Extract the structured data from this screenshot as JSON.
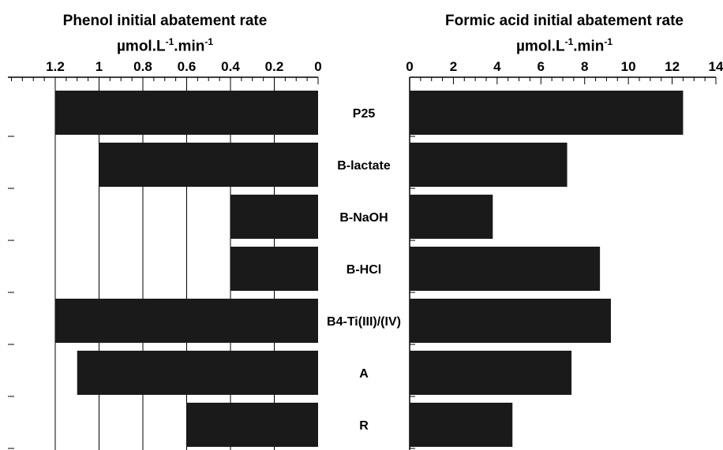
{
  "chart_data": [
    {
      "type": "bar",
      "orientation": "horizontal",
      "axis_direction": "reversed",
      "title": "Phenol initial abatement rate",
      "units": {
        "base": "µmol.L",
        "exp1": "-1",
        "mid": ".min",
        "exp2": "-1"
      },
      "categories": [
        "P25",
        "B-lactate",
        "B-NaOH",
        "B-HCl",
        "B4-Ti(III)/(IV)",
        "A",
        "R"
      ],
      "values": [
        1.2,
        1.0,
        0.4,
        0.4,
        1.2,
        1.1,
        0.6
      ],
      "xlim": [
        0,
        1.2
      ],
      "ticks": [
        1.2,
        1,
        0.8,
        0.6,
        0.4,
        0.2,
        0
      ],
      "bar_color": "#1a1a1a"
    },
    {
      "type": "bar",
      "orientation": "horizontal",
      "title": "Formic acid initial abatement rate",
      "units": {
        "base": "µmol.L",
        "exp1": "-1",
        "mid": ".min",
        "exp2": "-1"
      },
      "categories": [
        "P25",
        "B-lactate",
        "B-NaOH",
        "B-HCl",
        "B4-Ti(III)/(IV)",
        "A",
        "R"
      ],
      "values": [
        12.5,
        7.2,
        3.8,
        8.7,
        9.2,
        7.4,
        4.7
      ],
      "xlim": [
        0,
        14
      ],
      "ticks": [
        0,
        2,
        4,
        6,
        8,
        10,
        12,
        14
      ],
      "bar_color": "#1a1a1a"
    }
  ]
}
